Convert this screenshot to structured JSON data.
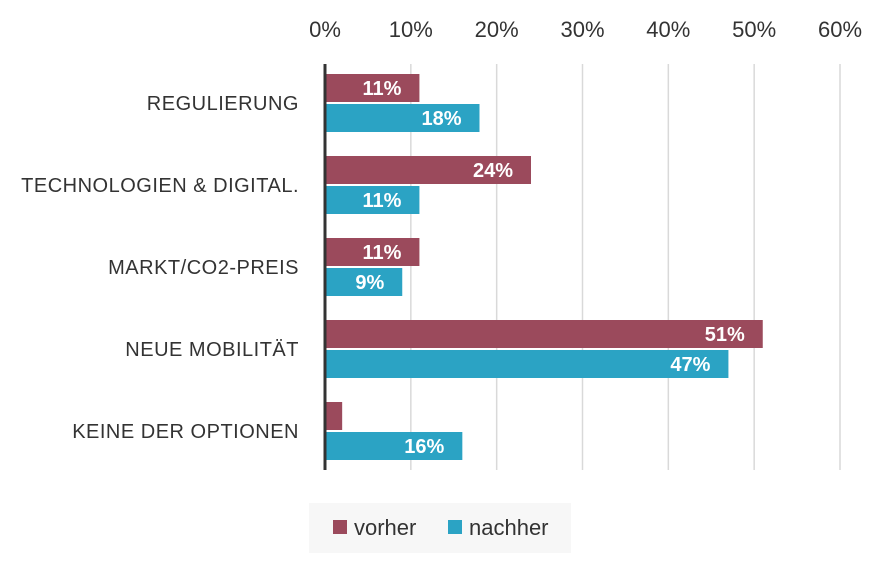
{
  "chart_data": {
    "type": "bar",
    "orientation": "horizontal",
    "categories": [
      "REGULIERUNG",
      "TECHNOLOGIEN & DIGITAL.",
      "MARKT/CO2-PREIS",
      "NEUE MOBILITÄT",
      "KEINE DER OPTIONEN"
    ],
    "series": [
      {
        "name": "vorher",
        "color": "#9b4a5c",
        "values": [
          11,
          24,
          11,
          51,
          2
        ],
        "labels": [
          "11%",
          "24%",
          "11%",
          "51%",
          ""
        ]
      },
      {
        "name": "nachher",
        "color": "#2ba3c4",
        "values": [
          18,
          11,
          9,
          47,
          16
        ],
        "labels": [
          "18%",
          "11%",
          "9%",
          "47%",
          "16%"
        ]
      }
    ],
    "xlim": [
      0,
      60
    ],
    "x_ticks": [
      "0%",
      "10%",
      "20%",
      "30%",
      "40%",
      "50%",
      "60%"
    ],
    "x_tick_values": [
      0,
      10,
      20,
      30,
      40,
      50,
      60
    ],
    "grid": true,
    "legend_position": "bottom"
  }
}
